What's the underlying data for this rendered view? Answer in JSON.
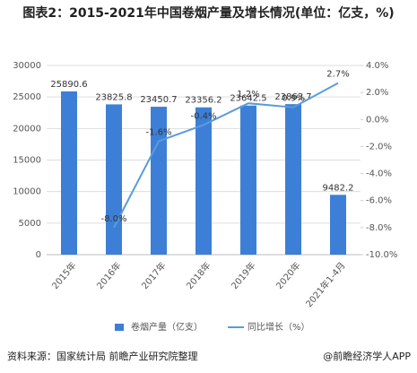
{
  "chart_data": {
    "type": "bar-line",
    "title": "图表2：2015-2021年中国卷烟产量及增长情况(单位：亿支，%)",
    "categories": [
      "2015年",
      "2016年",
      "2017年",
      "2018年",
      "2019年",
      "2020年",
      "2021年1-4月"
    ],
    "series": [
      {
        "name": "卷烟产量（亿支）",
        "type": "bar",
        "color": "#3d7fd6",
        "values": [
          25890.6,
          23825.8,
          23450.7,
          23356.2,
          23642.5,
          23863.7,
          9482.2
        ]
      },
      {
        "name": "同比增长（%）",
        "type": "line",
        "axis": "y2",
        "color": "#5b9bdc",
        "values": [
          null,
          -8.0,
          -1.6,
          -0.4,
          1.2,
          0.9,
          2.7
        ],
        "value_labels": [
          null,
          "-8.0%",
          "-1.6%",
          "-0.4%",
          "1.2%",
          "0.9%",
          "2.7%"
        ]
      }
    ],
    "ylim": [
      0,
      30000
    ],
    "yticks": [
      0,
      5000,
      10000,
      15000,
      20000,
      25000,
      30000
    ],
    "y2lim": [
      -10,
      4
    ],
    "y2ticks": [
      {
        "value": -10,
        "label": "-10.0%"
      },
      {
        "value": -8,
        "label": "-8.0%"
      },
      {
        "value": -6,
        "label": "-6.0%"
      },
      {
        "value": -4,
        "label": "-4.0%"
      },
      {
        "value": -2,
        "label": "-2.0%"
      },
      {
        "value": 0,
        "label": "0.0%"
      },
      {
        "value": 2,
        "label": "2.0%"
      },
      {
        "value": 4,
        "label": "4.0%"
      }
    ],
    "grid": true,
    "source": "资料来源：国家统计局 前瞻产业研究院整理",
    "credit": "@前瞻经济学人APP"
  }
}
